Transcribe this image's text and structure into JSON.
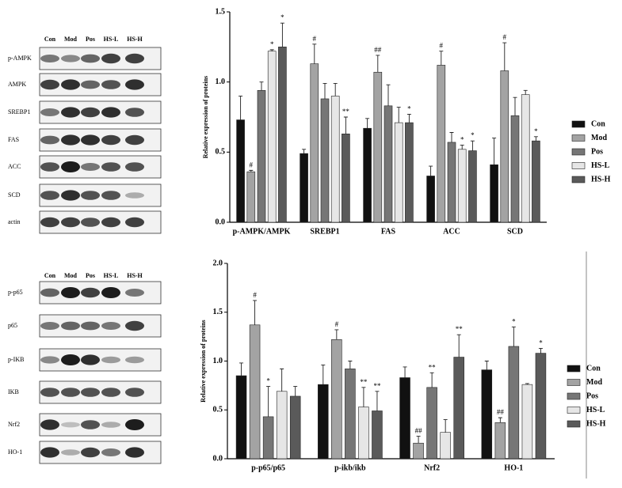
{
  "blots": [
    {
      "lanes": [
        "Con",
        "Mod",
        "Pos",
        "HS-L",
        "HS-H"
      ],
      "rows": [
        "p-AMPK",
        "AMPK",
        "SREBP1",
        "FAS",
        "ACC",
        "SCD",
        "actin"
      ]
    },
    {
      "lanes": [
        "Con",
        "Mod",
        "Pos",
        "HS-L",
        "HS-H"
      ],
      "rows": [
        "p-p65",
        "p65",
        "p-IKB",
        "IKB",
        "Nrf2",
        "HO-1"
      ]
    }
  ],
  "chart_data": [
    {
      "type": "bar",
      "y_label": "Relative expression of proteins",
      "categories": [
        "p-AMPK/AMPK",
        "SREBP1",
        "FAS",
        "ACC",
        "SCD"
      ],
      "ylim": [
        0,
        1.5
      ],
      "yticks": [
        {
          "value": 0,
          "label": "0.0"
        },
        0.5,
        {
          "value": 1,
          "label": "1.0"
        },
        1.5
      ],
      "series": [
        {
          "name": "Con",
          "color": "#111111",
          "values": [
            0.73,
            0.49,
            0.67,
            0.33,
            0.41
          ],
          "errors": [
            0.17,
            0.03,
            0.07,
            0.07,
            0.19
          ],
          "annotations": [
            null,
            null,
            null,
            null,
            null
          ]
        },
        {
          "name": "Mod",
          "color": "#a3a3a3",
          "values": [
            0.36,
            1.13,
            1.07,
            1.12,
            1.08
          ],
          "errors": [
            0.01,
            0.14,
            0.12,
            0.1,
            0.2
          ],
          "annotations": [
            "#",
            "#",
            "##",
            "#",
            "#"
          ]
        },
        {
          "name": "Pos",
          "color": "#767676",
          "values": [
            0.94,
            0.88,
            0.83,
            0.57,
            0.76
          ],
          "errors": [
            0.06,
            0.11,
            0.15,
            0.07,
            0.13
          ],
          "annotations": [
            null,
            null,
            null,
            null,
            null
          ]
        },
        {
          "name": "HS-L",
          "color": "#e6e6e6",
          "values": [
            1.22,
            0.9,
            0.71,
            0.52,
            0.91
          ],
          "errors": [
            0.01,
            0.09,
            0.11,
            0.03,
            0.03
          ],
          "annotations": [
            "*",
            null,
            null,
            "*",
            null
          ]
        },
        {
          "name": "HS-H",
          "color": "#5a5a5a",
          "values": [
            1.25,
            0.63,
            0.71,
            0.51,
            0.58
          ],
          "errors": [
            0.17,
            0.12,
            0.06,
            0.07,
            0.03
          ],
          "annotations": [
            "*",
            "**",
            "*",
            "*",
            "*"
          ]
        }
      ]
    },
    {
      "type": "bar",
      "y_label": "Relative expression of proteins",
      "categories": [
        "p-p65/p65",
        "p-ikb/ikb",
        "Nrf2",
        "HO-1"
      ],
      "ylim": [
        0,
        2
      ],
      "yticks": [
        {
          "value": 0,
          "label": "0.0"
        },
        0.5,
        {
          "value": 1,
          "label": "1.0"
        },
        1.5,
        {
          "value": 2,
          "label": "2.0"
        }
      ],
      "series": [
        {
          "name": "Con",
          "color": "#111111",
          "values": [
            0.85,
            0.76,
            0.83,
            0.91
          ],
          "errors": [
            0.13,
            0.2,
            0.11,
            0.09
          ],
          "annotations": [
            null,
            null,
            null,
            null
          ]
        },
        {
          "name": "Mod",
          "color": "#a3a3a3",
          "values": [
            1.37,
            1.22,
            0.16,
            0.37
          ],
          "errors": [
            0.25,
            0.1,
            0.07,
            0.05
          ],
          "annotations": [
            "#",
            "#",
            "##",
            "##"
          ]
        },
        {
          "name": "Pos",
          "color": "#767676",
          "values": [
            0.43,
            0.92,
            0.73,
            1.15
          ],
          "errors": [
            0.31,
            0.08,
            0.15,
            0.2
          ],
          "annotations": [
            "*",
            null,
            "**",
            "*"
          ]
        },
        {
          "name": "HS-L",
          "color": "#e6e6e6",
          "values": [
            0.69,
            0.53,
            0.27,
            0.76
          ],
          "errors": [
            0.23,
            0.2,
            0.13,
            0.01
          ],
          "annotations": [
            null,
            "**",
            null,
            null
          ]
        },
        {
          "name": "HS-H",
          "color": "#5a5a5a",
          "values": [
            0.64,
            0.49,
            1.04,
            1.08
          ],
          "errors": [
            0.1,
            0.2,
            0.23,
            0.05
          ],
          "annotations": [
            null,
            "**",
            "**",
            "*"
          ]
        }
      ]
    }
  ]
}
